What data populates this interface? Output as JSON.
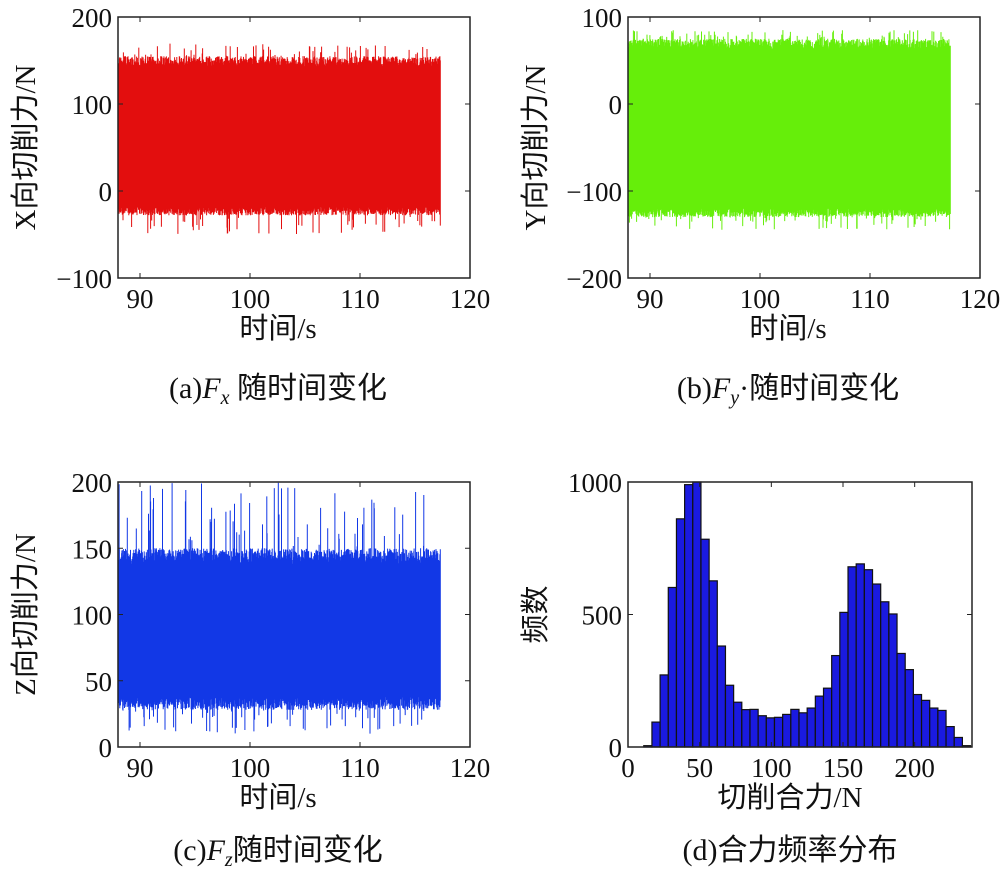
{
  "chart_data": [
    {
      "id": "a",
      "type": "line",
      "caption": {
        "prefix": "(a)",
        "var": "F",
        "sub": "x",
        "suffix": " 随时间变化"
      },
      "xlabel": "时间/s",
      "ylabel": "X向切削力/N",
      "xlim": [
        88,
        120
      ],
      "ylim": [
        -100,
        200
      ],
      "xticks": [
        "90",
        "100",
        "110",
        "120"
      ],
      "yticks": [
        "−100",
        "0",
        "100",
        "200"
      ],
      "ytick_values": [
        -100,
        0,
        100,
        200
      ],
      "xtick_values": [
        90,
        100,
        110,
        120
      ],
      "t_range": [
        88,
        117.3
      ],
      "band": [
        -28,
        155
      ],
      "extremes": [
        -50,
        170
      ],
      "color": "#e30e0e"
    },
    {
      "id": "b",
      "type": "line",
      "caption": {
        "prefix": "(b)",
        "var": "F",
        "sub": "y",
        "suffix": "·随时间变化"
      },
      "xlabel": "时间/s",
      "ylabel": "Y向切削力/N",
      "xlim": [
        88,
        120
      ],
      "ylim": [
        -200,
        100
      ],
      "xticks": [
        "90",
        "100",
        "110",
        "120"
      ],
      "yticks": [
        "−200",
        "−100",
        "0",
        "100"
      ],
      "ytick_values": [
        -200,
        -100,
        0,
        100
      ],
      "xtick_values": [
        90,
        100,
        110,
        120
      ],
      "t_range": [
        88,
        117.3
      ],
      "band": [
        -130,
        75
      ],
      "extremes": [
        -145,
        85
      ],
      "color": "#66ee0a"
    },
    {
      "id": "c",
      "type": "line",
      "caption": {
        "prefix": "(c)",
        "var": "F",
        "sub": "z",
        "suffix": "随时间变化"
      },
      "xlabel": "时间/s",
      "ylabel": "Z向切削力/N",
      "xlim": [
        88,
        120
      ],
      "ylim": [
        0,
        200
      ],
      "xticks": [
        "90",
        "100",
        "110",
        "120"
      ],
      "yticks": [
        "0",
        "50",
        "100",
        "150",
        "200"
      ],
      "ytick_values": [
        0,
        50,
        100,
        150,
        200
      ],
      "xtick_values": [
        90,
        100,
        110,
        120
      ],
      "t_range": [
        88,
        117.3
      ],
      "band": [
        28,
        150
      ],
      "extremes": [
        10,
        200
      ],
      "color": "#1238e6"
    },
    {
      "id": "d",
      "type": "bar",
      "caption": {
        "prefix": "(d)",
        "var": "",
        "sub": "",
        "suffix": "合力频率分布"
      },
      "xlabel": "切削合力/N",
      "ylabel": "频数",
      "xlim": [
        0,
        240
      ],
      "ylim": [
        0,
        1000
      ],
      "xticks": [
        "0",
        "50",
        "100",
        "150",
        "200"
      ],
      "xtick_values": [
        0,
        50,
        100,
        150,
        200
      ],
      "yticks": [
        "0",
        "500",
        "1000"
      ],
      "ytick_values": [
        0,
        500,
        1000
      ],
      "bin_start": 11,
      "bin_width": 5.7,
      "values": [
        5,
        94,
        272,
        602,
        861,
        990,
        1000,
        784,
        627,
        381,
        233,
        169,
        141,
        142,
        118,
        110,
        112,
        123,
        142,
        129,
        147,
        192,
        222,
        345,
        508,
        680,
        691,
        669,
        615,
        548,
        502,
        353,
        292,
        198,
        176,
        147,
        138,
        77,
        36,
        5
      ],
      "color": "#1a1ae0"
    }
  ]
}
